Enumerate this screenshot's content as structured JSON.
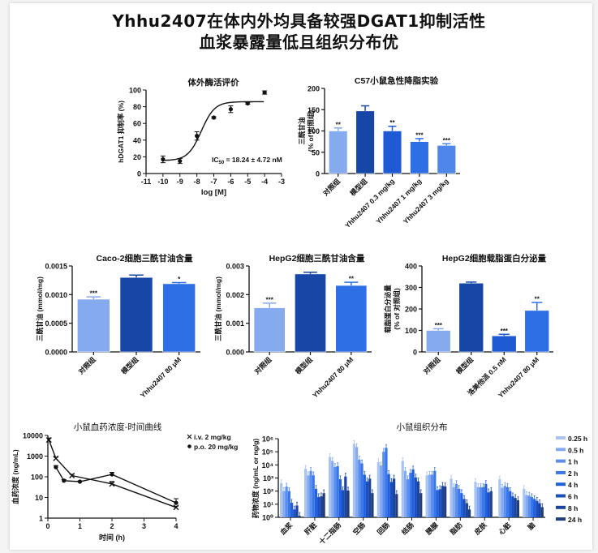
{
  "header": {
    "title_line1": "Yhhu2407在体内外均具备较强DGAT1抑制活性",
    "title_line2": "血浆暴露量低且组织分布优"
  },
  "colors": {
    "control": "#86aaee",
    "model": "#1646a6",
    "blue1": "#1d5ad4",
    "blue2": "#2f6fe6",
    "blue3": "#4f86ea",
    "axis": "#111111",
    "tissue_series": [
      "#a9c4f2",
      "#86aaee",
      "#5b8ef0",
      "#3a78ea",
      "#2160de",
      "#1a4fc0",
      "#1b44a0",
      "#1f3e7a"
    ]
  },
  "chart_data": [
    {
      "id": "dose-response",
      "type": "scatter",
      "title": "体外酶活评价",
      "xlabel": "log [M]",
      "ylabel": "hDGAT1 抑制率 (%)",
      "xlim": [
        -11,
        -3
      ],
      "ylim": [
        0,
        100
      ],
      "xticks": [
        -11,
        -10,
        -9,
        -8,
        -7,
        -6,
        -5,
        -4,
        -3
      ],
      "yticks": [
        0,
        20,
        40,
        60,
        80,
        100
      ],
      "points": [
        {
          "x": -10,
          "y": 17,
          "err": 4
        },
        {
          "x": -9,
          "y": 15,
          "err": 3
        },
        {
          "x": -8,
          "y": 45,
          "err": 5
        },
        {
          "x": -7,
          "y": 67,
          "err": 1
        },
        {
          "x": -6,
          "y": 77,
          "err": 4
        },
        {
          "x": -5,
          "y": 84,
          "err": 1
        },
        {
          "x": -4,
          "y": 97,
          "err": 2
        }
      ],
      "fit": {
        "bottom": 15.5,
        "top": 86,
        "logIC50": -7.74,
        "hill": 1.1
      },
      "annotation": "IC50 = 18.24 ± 4.72 nM",
      "annotation_main": "IC",
      "annotation_sub": "50",
      "annotation_rest": " = 18.24 ± 4.72 nM"
    },
    {
      "id": "c57",
      "type": "bar",
      "title": "C57小鼠急性降脂实验",
      "ylabel_line1": "三酰甘油",
      "ylabel_line2": "(% of 对照组)",
      "ylim": [
        0,
        200
      ],
      "yticks": [
        0,
        50,
        100,
        150,
        200
      ],
      "categories": [
        "对照组",
        "模型组",
        "Yhhu2407 0.3 mg/kg",
        "Yhhu2407 1 mg/kg",
        "Yhhu2407 3 mg/kg"
      ],
      "values": [
        100,
        147,
        100,
        75,
        66
      ],
      "errors": [
        7,
        12,
        11,
        7,
        4
      ],
      "significance": [
        "**",
        "",
        "**",
        "***",
        "***"
      ],
      "color_keys": [
        "control",
        "model",
        "blue1",
        "blue2",
        "blue3"
      ]
    },
    {
      "id": "caco2",
      "type": "bar",
      "title": "Caco-2细胞三酰甘油含量",
      "ylabel": "三酰甘油 (mmol/mg)",
      "ylim": [
        0,
        0.0015
      ],
      "yticks": [
        "0.0000",
        "0.0005",
        "0.0010",
        "0.0015"
      ],
      "categories": [
        "对照组",
        "模型组",
        "Yhhu2407 80 μM"
      ],
      "values": [
        0.00092,
        0.0013,
        0.00119
      ],
      "errors": [
        4e-05,
        4e-05,
        2e-05
      ],
      "significance": [
        "***",
        "",
        "*"
      ],
      "color_keys": [
        "control",
        "model",
        "blue2"
      ]
    },
    {
      "id": "hepg2-tg",
      "type": "bar",
      "title": "HepG2细胞三酰甘油含量",
      "ylabel": "三酰甘油 (mmol/mg)",
      "ylim": [
        0,
        0.003
      ],
      "yticks": [
        "0.000",
        "0.001",
        "0.002",
        "0.003"
      ],
      "categories": [
        "对照组",
        "模型组",
        "Yhhu2407 80 μM"
      ],
      "values": [
        0.00154,
        0.00272,
        0.00232
      ],
      "errors": [
        0.00016,
        6e-05,
        0.00011
      ],
      "significance": [
        "***",
        "",
        "**"
      ],
      "color_keys": [
        "control",
        "model",
        "blue2"
      ]
    },
    {
      "id": "hepg2-apob",
      "type": "bar",
      "title": "HepG2细胞载脂蛋白分泌量",
      "ylabel_line1": "载脂蛋白分泌量",
      "ylabel_line2": "(% of 对照组)",
      "ylim": [
        0,
        400
      ],
      "yticks": [
        0,
        100,
        200,
        300,
        400
      ],
      "categories": [
        "对照组",
        "模型组",
        "洛美他派 0.5 nM",
        "Yhhu2407 80 μM"
      ],
      "values": [
        100,
        320,
        75,
        193
      ],
      "errors": [
        8,
        5,
        7,
        37
      ],
      "significance": [
        "***",
        "",
        "***",
        "**"
      ],
      "color_keys": [
        "control",
        "model",
        "blue1",
        "blue2"
      ]
    },
    {
      "id": "pk",
      "type": "line",
      "title": "小鼠血药浓度-时间曲线",
      "xlabel": "时间 (h)",
      "ylabel": "血药浓度 (ng/mL)",
      "xlim": [
        0,
        4
      ],
      "ylim_log10": [
        0,
        4
      ],
      "xticks": [
        0,
        1,
        2,
        3,
        4
      ],
      "yticks": [
        "1",
        "10",
        "100",
        "1000",
        "10000"
      ],
      "legend_position": "top-right",
      "series": [
        {
          "name": "i.v. 2 mg/kg",
          "marker": "x",
          "x": [
            0.033,
            0.25,
            0.75,
            2,
            4
          ],
          "y": [
            6000,
            780,
            115,
            45,
            3.3
          ],
          "err_log": [
            0.1,
            0.05,
            0.06,
            0.12,
            0.06
          ]
        },
        {
          "name": "p.o. 20 mg/kg",
          "marker": "circle",
          "x": [
            0.25,
            0.5,
            1,
            2,
            4
          ],
          "y": [
            290,
            65,
            58,
            130,
            5.5
          ],
          "err_log": [
            0.08,
            0.05,
            0.04,
            0.1,
            0.2
          ]
        }
      ]
    },
    {
      "id": "tissue",
      "type": "bar",
      "title": "小鼠组织分布",
      "ylabel": "药物浓度 (ng/mL or ng/g)",
      "ylim_log10": [
        0,
        6
      ],
      "yticks": [
        "10⁰",
        "10¹",
        "10²",
        "10³",
        "10⁴",
        "10⁵",
        "10⁶"
      ],
      "legend_position": "right",
      "categories": [
        "血浆",
        "肝脏",
        "十二指肠",
        "空肠",
        "回肠",
        "结肠",
        "胰腺",
        "脂肪",
        "皮肤",
        "心脏",
        "脑"
      ],
      "series": [
        {
          "name": "0.25 h",
          "values": [
            400,
            5000,
            40000,
            400000,
            16000,
            20000,
            1600,
            900,
            500,
            800,
            150
          ]
        },
        {
          "name": "0.5 h",
          "values": [
            100,
            1600,
            20000,
            230000,
            9000,
            3500,
            1800,
            200,
            200,
            180,
            50
          ]
        },
        {
          "name": "1 h",
          "values": [
            220,
            3500,
            7000,
            25000,
            100000,
            800,
            1800,
            350,
            200,
            250,
            45
          ]
        },
        {
          "name": "2 h",
          "values": [
            100,
            1600,
            8000,
            13000,
            200000,
            2500,
            3500,
            150,
            200,
            200,
            35
          ]
        },
        {
          "name": "4 h",
          "values": [
            13,
            150,
            800,
            1800,
            2000,
            4500,
            120,
            70,
            350,
            100,
            25
          ]
        },
        {
          "name": "6 h",
          "values": [
            4,
            35,
            120,
            550,
            500,
            1100,
            140,
            25,
            80,
            40,
            18
          ]
        },
        {
          "name": "8 h",
          "values": [
            8,
            40,
            1300,
            900,
            900,
            550,
            250,
            12,
            100,
            30,
            12
          ]
        },
        {
          "name": "24 h",
          "values": [
            1.3,
            70,
            110,
            70,
            60,
            70,
            230,
            4,
            0,
            20,
            6
          ]
        }
      ]
    }
  ]
}
